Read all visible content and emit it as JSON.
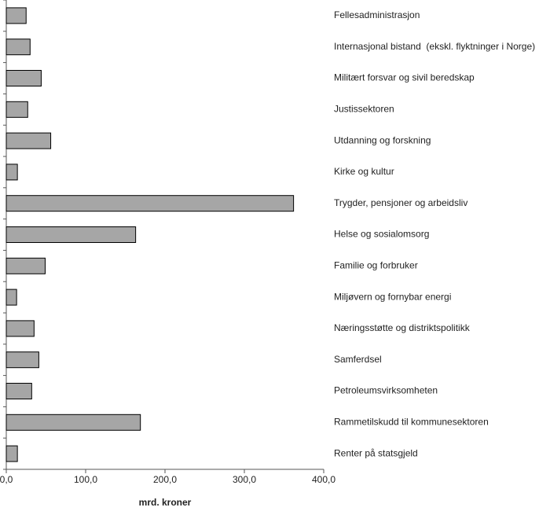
{
  "chart_data": {
    "type": "bar",
    "orientation": "horizontal",
    "categories": [
      "Fellesadministrasjon",
      "Internasjonal bistand  (ekskl. flyktninger i Norge)",
      "Militært forsvar og sivil beredskap",
      "Justissektoren",
      "Utdanning og forskning",
      "Kirke og kultur",
      "Trygder, pensjoner og arbeidsliv",
      "Helse og sosialomsorg",
      "Familie og forbruker",
      "Miljøvern og fornybar energi",
      "Næringsstøtte og distriktspolitikk",
      "Samferdsel",
      "Petroleumsvirksomheten",
      "Rammetilskudd til kommunesektoren",
      "Renter på statsgjeld"
    ],
    "values": [
      25,
      30,
      44,
      27,
      56,
      14,
      362,
      163,
      49,
      13,
      35,
      41,
      32,
      169,
      14
    ],
    "color": "#a6a6a6",
    "xlabel": "mrd. kroner",
    "xlim": [
      0,
      400
    ],
    "xticks": [
      {
        "value": 0,
        "label": "0,0"
      },
      {
        "value": 100,
        "label": "100,0"
      },
      {
        "value": 200,
        "label": "200,0"
      },
      {
        "value": 300,
        "label": "300,0"
      },
      {
        "value": 400,
        "label": "400,0"
      }
    ],
    "grid": false
  }
}
